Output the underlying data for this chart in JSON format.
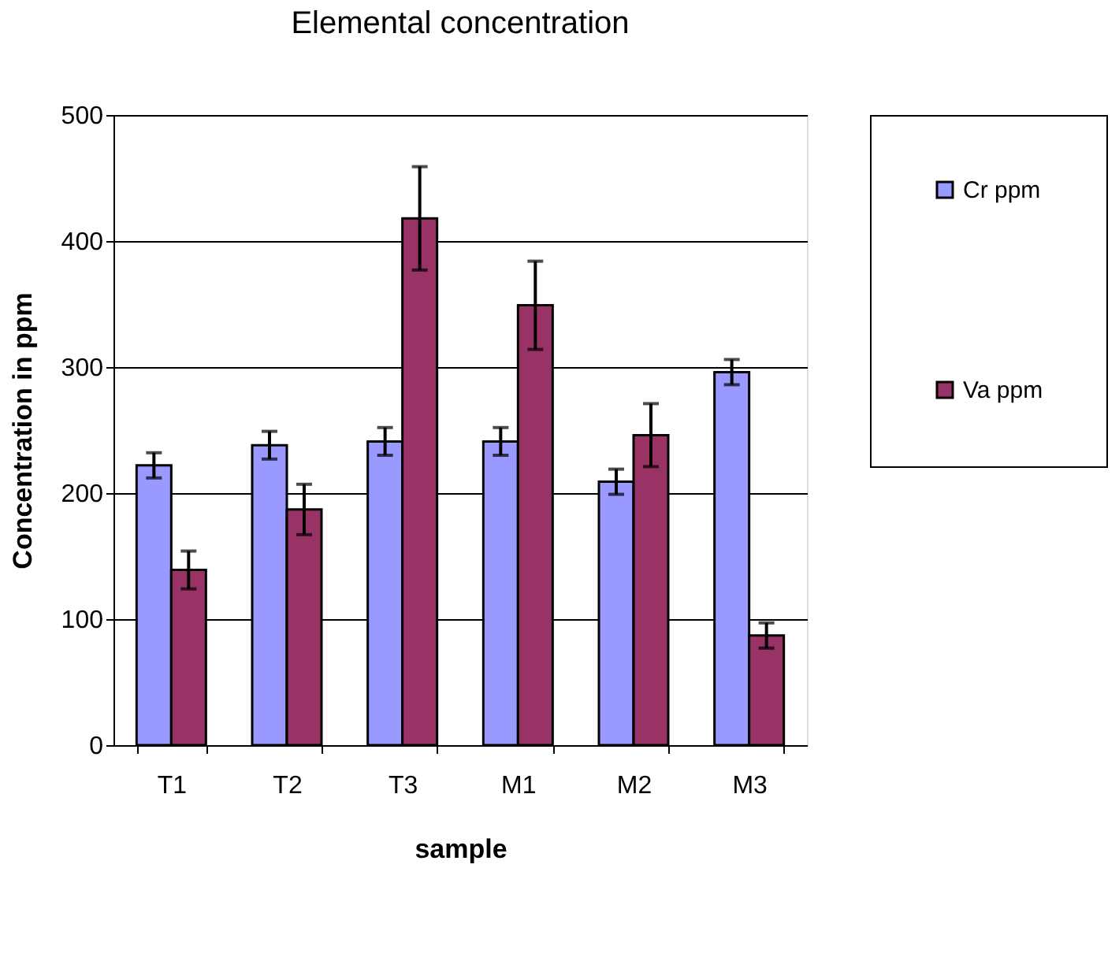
{
  "chart_data": {
    "type": "bar",
    "title": "Elemental concentration",
    "xlabel": "sample",
    "ylabel": "Concentration in ppm",
    "categories": [
      "T1",
      "T2",
      "T3",
      "M1",
      "M2",
      "M3"
    ],
    "series": [
      {
        "name": "Cr ppm",
        "color": "#9999ff",
        "values": [
          222,
          238,
          241,
          241,
          209,
          296
        ],
        "errors": [
          10,
          11,
          11,
          11,
          10,
          10
        ]
      },
      {
        "name": "Va ppm",
        "color": "#993366",
        "values": [
          139,
          187,
          418,
          349,
          246,
          87
        ],
        "errors": [
          15,
          20,
          41,
          35,
          25,
          10
        ]
      }
    ],
    "ylim": [
      0,
      500
    ],
    "yticks": [
      0,
      100,
      200,
      300,
      400,
      500
    ],
    "grid": "y",
    "legend": "right"
  }
}
